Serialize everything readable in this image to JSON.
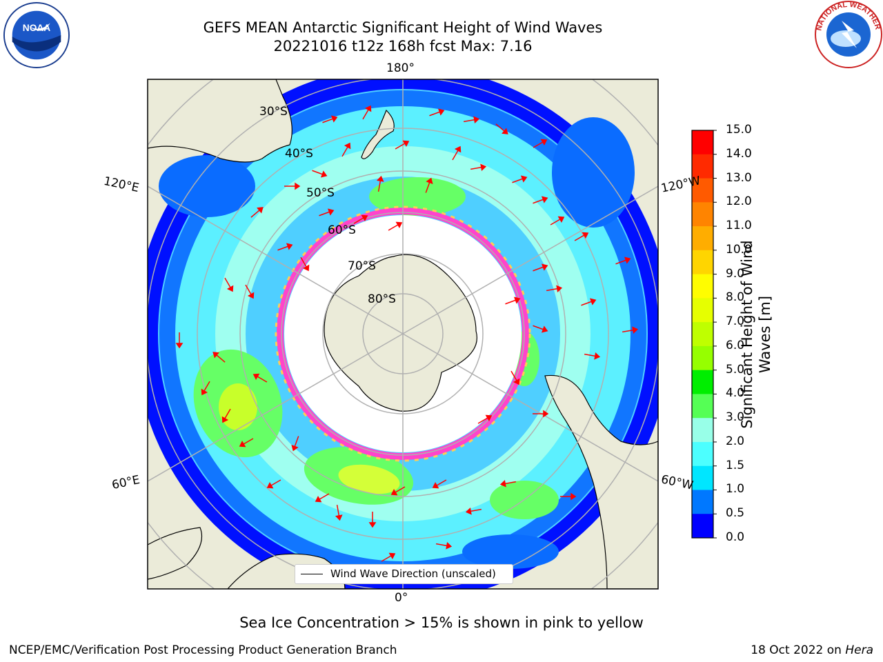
{
  "title": {
    "line1": "GEFS MEAN Antarctic Significant Height of Wind Waves",
    "line2": "20221016 t12z 168h fcst   Max: 7.16"
  },
  "logos": {
    "left": "noaa-logo",
    "right": "national-weather-service-logo",
    "left_text": "NOAA",
    "right_text": "NATIONAL WEATHER SERVICE"
  },
  "map": {
    "projection": "south-polar-stereographic",
    "longitude_labels": {
      "top": "180°",
      "bottom": "0°",
      "upper_left": "120°E",
      "lower_left": "60°E",
      "upper_right": "120°W",
      "lower_right": "60°W"
    },
    "latitude_labels": [
      "30°S",
      "40°S",
      "50°S",
      "60°S",
      "70°S",
      "80°S"
    ],
    "legend": "Wind Wave Direction (unscaled)"
  },
  "colorbar": {
    "label": "Significant Height of Wind Waves [m]",
    "ticks": [
      "15.0",
      "14.0",
      "13.0",
      "12.0",
      "11.0",
      "10.0",
      "9.0",
      "8.0",
      "7.0",
      "6.0",
      "5.0",
      "4.0",
      "3.0",
      "2.0",
      "1.5",
      "1.0",
      "0.5",
      "0.0"
    ],
    "colors": [
      "#ff0000",
      "#ff2a00",
      "#ff5a00",
      "#ff8400",
      "#ffad00",
      "#ffd500",
      "#fffd00",
      "#e6ff00",
      "#bfff00",
      "#96ff00",
      "#00ee00",
      "#55ff55",
      "#98ffe8",
      "#4cffff",
      "#00e6ff",
      "#0078ff",
      "#0000ff"
    ]
  },
  "caption": "Sea Ice Concentration > 15% is shown in pink to yellow",
  "footer": {
    "left": "NCEP/EMC/Verification Post Processing Product Generation Branch",
    "right_date": "18 Oct 2022 on ",
    "right_system": "Hera"
  }
}
